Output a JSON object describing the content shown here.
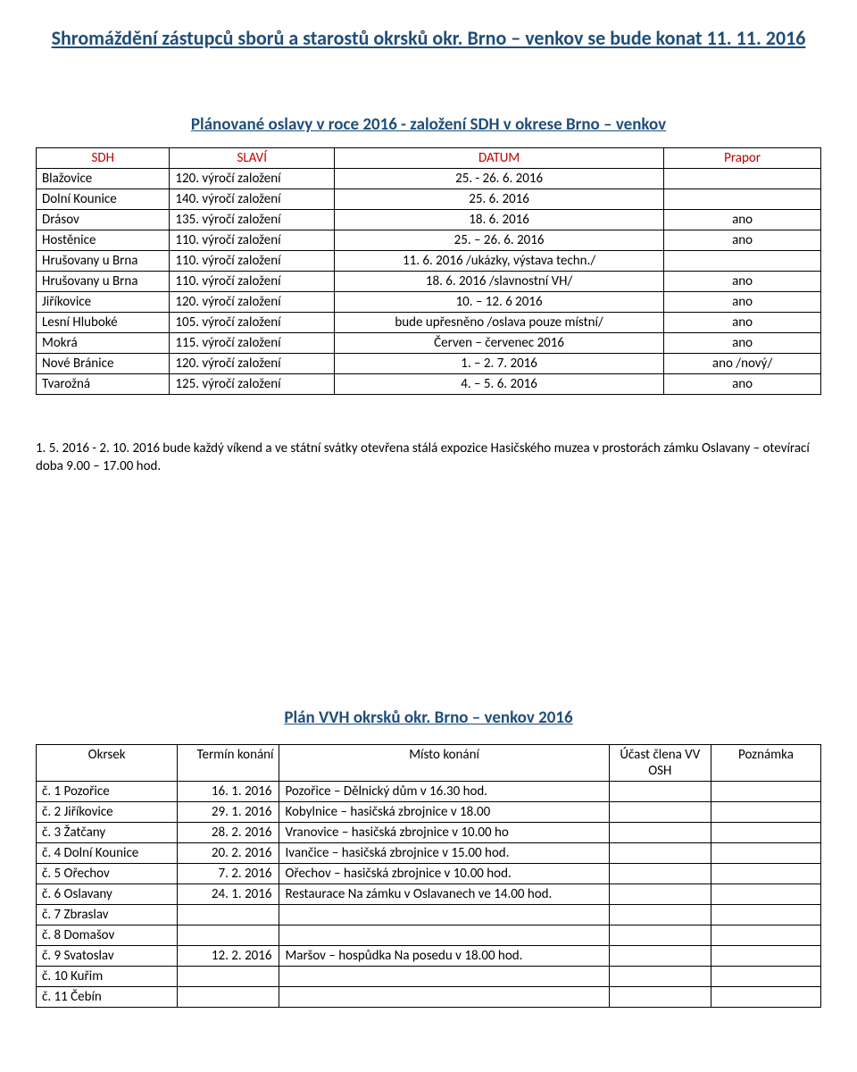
{
  "title1": "Shromáždění zástupců sborů a starostů okrsků okr. Brno – venkov se bude konat 11. 11. 2016",
  "title2": "Plánované oslavy v roce 2016 - založení SDH v okrese Brno – venkov",
  "table1": {
    "headers": [
      "SDH",
      "SLAVÍ",
      "DATUM",
      "Prapor"
    ],
    "rows": [
      [
        "Blažovice",
        "120. výročí založení",
        "25. - 26. 6. 2016",
        ""
      ],
      [
        "Dolní Kounice",
        "140. výročí založení",
        "25. 6. 2016",
        ""
      ],
      [
        "Drásov",
        "135. výročí založení",
        "18. 6. 2016",
        "ano"
      ],
      [
        "Hostěnice",
        "110. výročí založení",
        "25. – 26. 6. 2016",
        "ano"
      ],
      [
        "Hrušovany u Brna",
        "110. výročí založení",
        "11. 6. 2016 /ukázky, výstava techn./",
        ""
      ],
      [
        "Hrušovany u Brna",
        "110. výročí založení",
        "18. 6. 2016 /slavnostní VH/",
        "ano"
      ],
      [
        "Jiříkovice",
        "120. výročí založení",
        "10. – 12. 6 2016",
        "ano"
      ],
      [
        "Lesní Hluboké",
        "105. výročí založení",
        "bude upřesněno /oslava pouze místní/",
        "ano"
      ],
      [
        "Mokrá",
        "115. výročí založení",
        "Červen – červenec 2016",
        "ano"
      ],
      [
        "Nové Bránice",
        "120. výročí založení",
        "1. – 2. 7. 2016",
        "ano /nový/"
      ],
      [
        "Tvarožná",
        "125. výročí založení",
        "4. – 5. 6. 2016",
        "ano"
      ]
    ]
  },
  "paragraph": "1. 5. 2016 - 2. 10. 2016 bude každý víkend a ve státní svátky otevřena stálá expozice Hasičského muzea v prostorách zámku Oslavany – otevírací doba 9.00 – 17.00 hod.",
  "title3": "Plán VVH okrsků okr. Brno – venkov 2016",
  "table2": {
    "headers": [
      "Okrsek",
      "Termín konání",
      "Místo konání",
      "Účast člena VV OSH",
      "Poznámka"
    ],
    "rows": [
      [
        "č. 1 Pozořice",
        "16. 1. 2016",
        "Pozořice – Dělnický dům v 16.30 hod.",
        "",
        ""
      ],
      [
        "č. 2 Jiříkovice",
        "29. 1. 2016",
        "Kobylnice – hasičská zbrojnice v 18.00",
        "",
        ""
      ],
      [
        "č. 3 Žatčany",
        "28. 2. 2016",
        "Vranovice – hasičská zbrojnice v 10.00 ho",
        "",
        ""
      ],
      [
        "č. 4 Dolní Kounice",
        "20. 2. 2016",
        "Ivančice – hasičská zbrojnice v 15.00 hod.",
        "",
        ""
      ],
      [
        "č. 5 Ořechov",
        "7. 2. 2016",
        "Ořechov – hasičská zbrojnice v 10.00 hod.",
        "",
        ""
      ],
      [
        "č. 6 Oslavany",
        "24. 1. 2016",
        "Restaurace Na zámku v Oslavanech ve 14.00 hod.",
        "",
        ""
      ],
      [
        "č. 7 Zbraslav",
        "",
        "",
        "",
        ""
      ],
      [
        "č. 8 Domašov",
        "",
        "",
        "",
        ""
      ],
      [
        "č. 9 Svatoslav",
        "12. 2. 2016",
        "Maršov – hospůdka Na posedu v 18.00 hod.",
        "",
        ""
      ],
      [
        "č. 10 Kuřim",
        "",
        "",
        "",
        ""
      ],
      [
        "č. 11 Čebín",
        "",
        "",
        "",
        ""
      ]
    ]
  }
}
